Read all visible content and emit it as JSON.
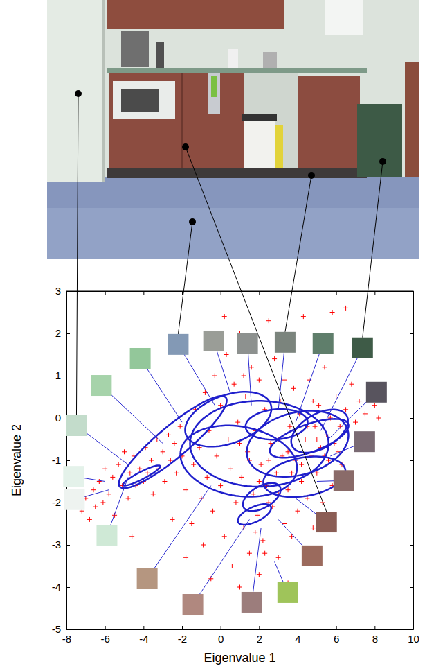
{
  "chart_data": {
    "type": "scatter",
    "x_label": "Eigenvalue 1",
    "y_label": "Eigenvalue 2",
    "color": "#ff0000",
    "marker": "plus",
    "grid": false,
    "xlim": [
      -8,
      10
    ],
    "xticks": [
      -8,
      -6,
      -4,
      -2,
      0,
      2,
      4,
      6,
      8,
      10
    ],
    "ylim": [
      -5,
      3
    ],
    "yticks": [
      -5,
      -4,
      -3,
      -2,
      -1,
      0,
      1,
      2,
      3
    ],
    "x": [
      -7.2,
      -7.0,
      -6.8,
      -6.6,
      -6.5,
      -6.3,
      -6.1,
      -6.0,
      -5.8,
      -5.6,
      -5.5,
      -5.3,
      -5.1,
      -5.0,
      -4.8,
      -4.7,
      -4.5,
      -4.4,
      -4.2,
      -4.0,
      -3.9,
      -3.8,
      -3.6,
      -3.5,
      -3.3,
      -3.2,
      -3.0,
      -2.9,
      -2.7,
      -2.6,
      -2.4,
      -2.3,
      -2.1,
      -2.0,
      -1.8,
      -1.7,
      -1.5,
      -1.4,
      -1.3,
      -1.1,
      -1.0,
      -0.9,
      -0.8,
      -0.7,
      -0.6,
      -0.4,
      -0.3,
      -0.2,
      0.0,
      0.0,
      0.2,
      0.3,
      0.4,
      0.5,
      0.6,
      0.7,
      0.8,
      0.9,
      1.0,
      1.1,
      1.2,
      1.3,
      1.4,
      1.5,
      1.6,
      1.7,
      1.8,
      1.9,
      2.0,
      2.1,
      2.2,
      2.3,
      2.4,
      2.5,
      2.6,
      2.7,
      2.8,
      2.9,
      3.0,
      3.1,
      3.2,
      3.3,
      3.4,
      3.5,
      3.6,
      3.7,
      3.8,
      3.9,
      4.0,
      4.1,
      4.2,
      4.3,
      4.4,
      4.5,
      4.6,
      4.7,
      4.8,
      4.9,
      5.0,
      5.1,
      5.2,
      5.3,
      5.4,
      5.5,
      5.6,
      5.7,
      5.8,
      5.9,
      6.0,
      6.2,
      6.3,
      6.5,
      6.6,
      6.8,
      7.0,
      7.2,
      7.5,
      7.8,
      8.0,
      8.2,
      -0.5,
      1.0,
      3.5,
      2.0,
      -1.8,
      -2.5,
      -4.6,
      -7.5,
      0.2,
      5.8,
      6.5,
      2.5,
      3.0,
      3.5,
      4.0,
      4.5,
      5.0,
      2.0,
      2.5,
      3.0,
      1.5,
      1.0,
      1.8,
      2.3,
      4.2,
      3.7,
      5.4,
      6.1,
      4.8,
      3.3,
      1.2
    ],
    "y": [
      -2.2,
      -1.9,
      -2.4,
      -1.7,
      -2.1,
      -1.5,
      -2.0,
      -1.2,
      -1.8,
      -1.4,
      -2.3,
      -1.1,
      -1.6,
      -0.8,
      -1.9,
      -1.3,
      -0.9,
      -1.6,
      -1.2,
      -1.5,
      -0.7,
      -1.3,
      -1.0,
      -1.8,
      -0.5,
      -1.2,
      -0.8,
      -1.5,
      -0.4,
      -1.0,
      -0.6,
      -1.3,
      -0.2,
      -0.9,
      -1.7,
      -0.5,
      -2.5,
      -1.1,
      0.2,
      -0.7,
      -1.9,
      -3.0,
      0.6,
      -1.4,
      -0.3,
      -2.2,
      1.0,
      -0.9,
      -1.6,
      0.3,
      -2.8,
      1.5,
      -0.5,
      -1.2,
      -3.5,
      0.8,
      -2.0,
      -0.1,
      2.0,
      -1.4,
      -2.6,
      0.5,
      -0.8,
      -3.2,
      1.2,
      -1.8,
      -0.3,
      -2.3,
      0.9,
      -1.1,
      -2.9,
      0.2,
      -1.6,
      2.3,
      -0.6,
      -2.1,
      1.4,
      -1.3,
      -3.3,
      0.4,
      -0.9,
      -2.5,
      1.8,
      -1.7,
      -0.2,
      -2.8,
      0.7,
      -1.0,
      -2.2,
      0.1,
      -1.5,
      2.4,
      -0.5,
      -1.9,
      0.9,
      -0.9,
      -2.6,
      -0.2,
      -1.3,
      0.3,
      -0.7,
      -2.0,
      1.2,
      -0.4,
      -1.0,
      0.0,
      -1.6,
      -0.6,
      0.5,
      -0.2,
      -1.1,
      0.2,
      -0.5,
      0.8,
      -0.1,
      0.4,
      0.1,
      0.6,
      0.3,
      0.0,
      -3.8,
      -4.0,
      -3.9,
      -3.7,
      -3.3,
      -2.4,
      -2.8,
      -2.0,
      2.4,
      2.5,
      2.6,
      -1.0,
      -0.5,
      -0.8,
      -0.4,
      -0.2,
      -0.5,
      -1.5,
      -2.0,
      -1.8,
      -1.0,
      -0.6,
      -2.7,
      -3.2,
      -1.1,
      -1.3,
      -0.9,
      -0.8,
      0.4,
      0.9,
      1.0
    ],
    "ellipses": [
      {
        "mean": [
          -4.1,
          -1.36
        ],
        "cov": [
          [
            0.93,
            0.21
          ],
          [
            0.21,
            0.057
          ]
        ],
        "color": "#1f1fcc"
      },
      {
        "mean": [
          -2.48,
          -0.57
        ],
        "cov": [
          [
            7.85,
            2.76
          ],
          [
            2.76,
            1.19
          ]
        ],
        "color": "#1f1fcc"
      },
      {
        "mean": [
          0.4,
          -0.03
        ],
        "cov": [
          [
            5.02,
            0.57
          ],
          [
            0.57,
            0.42
          ]
        ],
        "color": "#1f1fcc"
      },
      {
        "mean": [
          2.01,
          -0.61
        ],
        "cov": [
          [
            12.94,
            0
          ],
          [
            0,
            1.03
          ]
        ],
        "color": "#1f1fcc"
      },
      {
        "mean": [
          0.94,
          -1.02
        ],
        "cov": [
          [
            9.17,
            -0.48
          ],
          [
            -0.48,
            0.71
          ]
        ],
        "color": "#1f1fcc"
      },
      {
        "mean": [
          4.0,
          -0.61
        ],
        "cov": [
          [
            6.97,
            0.53
          ],
          [
            0.53,
            0.61
          ]
        ],
        "color": "#1f1fcc"
      },
      {
        "mean": [
          4.6,
          -0.48
        ],
        "cov": [
          [
            4.18,
            0.61
          ],
          [
            0.61,
            0.21
          ]
        ],
        "color": "#1f1fcc"
      },
      {
        "mean": [
          5.14,
          -0.31
        ],
        "cov": [
          [
            2.17,
            0.36
          ],
          [
            0.36,
            0.26
          ]
        ],
        "color": "#1f1fcc"
      },
      {
        "mean": [
          4.35,
          -1.39
        ],
        "cov": [
          [
            4.55,
            0.28
          ],
          [
            0.28,
            0.23
          ]
        ],
        "color": "#1f1fcc"
      },
      {
        "mean": [
          2.14,
          -1.87
        ],
        "cov": [
          [
            0.96,
            0.17
          ],
          [
            0.17,
            0.11
          ]
        ],
        "color": "#1f1fcc"
      },
      {
        "mean": [
          1.76,
          -2.28
        ],
        "cov": [
          [
            0.75,
            0.13
          ],
          [
            0.13,
            0.059
          ]
        ],
        "color": "#1f1fcc"
      },
      {
        "mean": [
          2.91,
          -0.15
        ],
        "cov": [
          [
            2.6,
            0.08
          ],
          [
            0.08,
            0.13
          ]
        ],
        "color": "#1f1fcc"
      }
    ],
    "patches": [
      {
        "x": -0.3,
        "y": 0.3,
        "box": [
          -2.2,
          1.74
        ],
        "color": "#8399b5",
        "linked": true
      },
      {
        "x": 0.5,
        "y": 0.6,
        "box": [
          -0.36,
          1.82
        ],
        "color": "#9a9d97"
      },
      {
        "x": 1.6,
        "y": 0.3,
        "box": [
          1.4,
          1.77
        ],
        "color": "#8d918f"
      },
      {
        "x": 3.0,
        "y": 0.2,
        "box": [
          3.35,
          1.79
        ],
        "color": "#7b847d",
        "linked": true
      },
      {
        "x": 3.9,
        "y": -0.1,
        "box": [
          5.32,
          1.77
        ],
        "color": "#5f7e6b"
      },
      {
        "x": 5.2,
        "y": -0.3,
        "box": [
          7.37,
          1.66
        ],
        "color": "#3e5b47",
        "linked": true
      },
      {
        "x": 5.6,
        "y": -0.5,
        "box": [
          8.09,
          0.61
        ],
        "color": "#58545e"
      },
      {
        "x": 5.7,
        "y": -0.9,
        "box": [
          7.48,
          -0.56
        ],
        "color": "#7a6a73"
      },
      {
        "x": 5.0,
        "y": -1.5,
        "box": [
          6.4,
          -1.48
        ],
        "color": "#8a6b69"
      },
      {
        "x": 3.9,
        "y": -1.9,
        "box": [
          5.5,
          -2.46
        ],
        "color": "#8b5d55",
        "linked": true
      },
      {
        "x": 3.0,
        "y": -2.4,
        "box": [
          4.75,
          -3.26
        ],
        "color": "#9b6a5d"
      },
      {
        "x": 2.8,
        "y": -3.4,
        "box": [
          3.49,
          -4.13
        ],
        "color": "#9fc45a"
      },
      {
        "x": 2.1,
        "y": -2.6,
        "box": [
          1.62,
          -4.36
        ],
        "color": "#9c7d7c"
      },
      {
        "x": 1.5,
        "y": -2.4,
        "box": [
          -1.44,
          -4.41
        ],
        "color": "#b0887f"
      },
      {
        "x": -0.5,
        "y": -1.6,
        "box": [
          -3.81,
          -3.8
        ],
        "color": "#b59680"
      },
      {
        "x": -4.8,
        "y": -1.4,
        "box": [
          -5.9,
          -2.77
        ],
        "color": "#cfe9d6"
      },
      {
        "x": -5.8,
        "y": -1.7,
        "box": [
          -7.59,
          -1.93
        ],
        "color": "#eef3f0"
      },
      {
        "x": -6.0,
        "y": -1.5,
        "box": [
          -7.63,
          -1.38
        ],
        "color": "#e4f2ea"
      },
      {
        "x": -4.8,
        "y": -1.1,
        "box": [
          -7.48,
          -0.18
        ],
        "color": "#c3dccb",
        "linked": true
      },
      {
        "x": -3.0,
        "y": -0.6,
        "box": [
          -6.19,
          0.77
        ],
        "color": "#a6d3aa"
      },
      {
        "x": -2.0,
        "y": -0.1,
        "box": [
          -4.17,
          1.41
        ],
        "color": "#93c79a"
      }
    ]
  }
}
